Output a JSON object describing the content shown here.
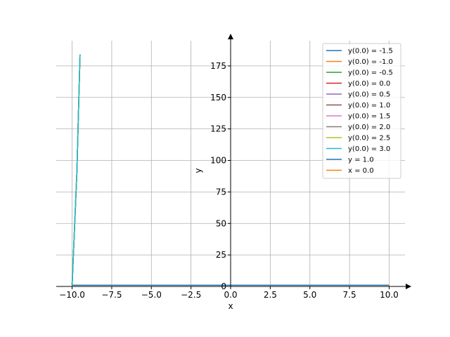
{
  "chart_data": {
    "type": "line",
    "xlabel": "x",
    "ylabel": "y",
    "xlim": [
      -11.0,
      11.0
    ],
    "ylim": [
      0,
      195
    ],
    "x_ticks": [
      -10.0,
      -7.5,
      -5.0,
      -2.5,
      0.0,
      2.5,
      5.0,
      7.5,
      10.0
    ],
    "x_tick_labels": [
      "−10.0",
      "−7.5",
      "−5.0",
      "−2.5",
      "0.0",
      "2.5",
      "5.0",
      "7.5",
      "10.0"
    ],
    "y_ticks": [
      0,
      25,
      50,
      75,
      100,
      125,
      150,
      175
    ],
    "y_tick_labels": [
      "0",
      "25",
      "50",
      "75",
      "100",
      "125",
      "150",
      "175"
    ],
    "grid": true,
    "legend_position": "top-right",
    "series": [
      {
        "name": "y(0.0) = -1.5",
        "color": "#1f77b4",
        "x": [
          -10.0,
          -9.7,
          -9.5
        ],
        "y": [
          1.0,
          90,
          184
        ]
      },
      {
        "name": "y(0.0) = -1.0",
        "color": "#ff7f0e",
        "x": [
          -10.0,
          -9.7,
          -9.5
        ],
        "y": [
          1.0,
          90,
          184
        ]
      },
      {
        "name": "y(0.0) = -0.5",
        "color": "#2ca02c",
        "x": [
          -10.0,
          -9.7,
          -9.5
        ],
        "y": [
          1.0,
          90,
          184
        ]
      },
      {
        "name": "y(0.0) = 0.0",
        "color": "#d62728",
        "x": [
          -10.0,
          -9.7,
          -9.5
        ],
        "y": [
          1.0,
          90,
          184
        ]
      },
      {
        "name": "y(0.0) = 0.5",
        "color": "#9467bd",
        "x": [
          -10.0,
          -9.7,
          -9.5
        ],
        "y": [
          1.0,
          90,
          184
        ]
      },
      {
        "name": "y(0.0) = 1.0",
        "color": "#8c564b",
        "x": [
          -10.0,
          10.0
        ],
        "y": [
          1.0,
          1.0
        ]
      },
      {
        "name": "y(0.0) = 1.5",
        "color": "#e377c2",
        "x": [
          -10.0,
          -9.7,
          -9.5
        ],
        "y": [
          1.0,
          90,
          184
        ]
      },
      {
        "name": "y(0.0) = 2.0",
        "color": "#7f7f7f",
        "x": [
          -10.0,
          -9.7,
          -9.5
        ],
        "y": [
          1.0,
          90,
          184
        ]
      },
      {
        "name": "y(0.0) = 2.5",
        "color": "#bcbd22",
        "x": [
          -10.0,
          -9.7,
          -9.5
        ],
        "y": [
          1.0,
          90,
          184
        ]
      },
      {
        "name": "y(0.0) = 3.0",
        "color": "#17becf",
        "x": [
          -10.0,
          -9.7,
          -9.5
        ],
        "y": [
          1.0,
          90,
          184
        ]
      },
      {
        "name": "y = 1.0",
        "color": "#1f77b4",
        "x": [
          -10.0,
          10.0
        ],
        "y": [
          1.0,
          1.0
        ]
      },
      {
        "name": "x = 0.0",
        "color": "#ff7f0e",
        "x": [
          0.0,
          0.0
        ],
        "y": [
          0,
          0
        ]
      }
    ]
  }
}
